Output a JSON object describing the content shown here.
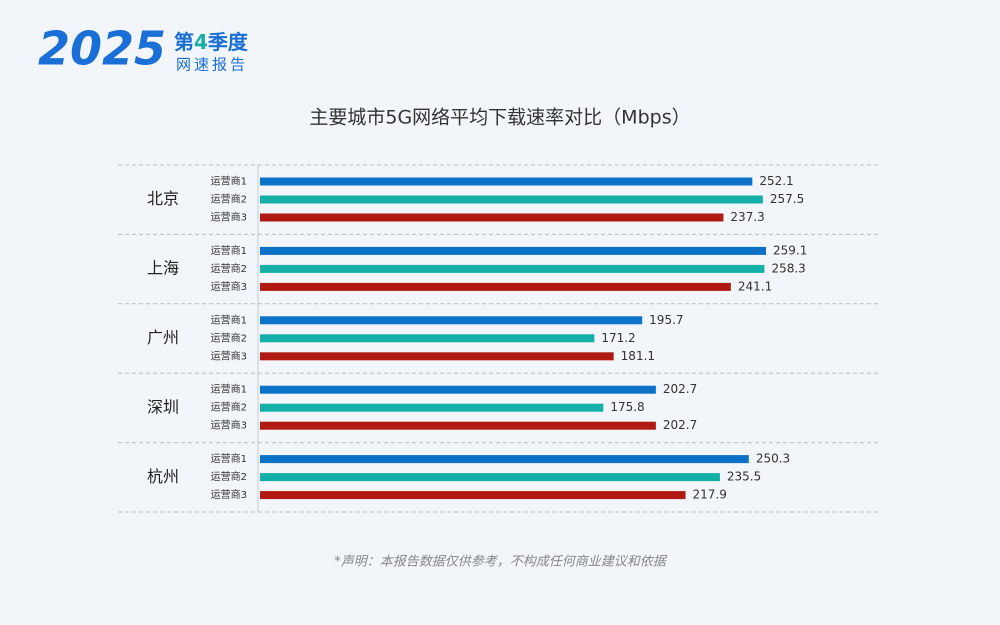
{
  "header": {
    "logo": "2025",
    "quarter": [
      "第",
      "4",
      "季度"
    ],
    "subtitle": "网速报告"
  },
  "chart_data": {
    "type": "grouped-hbar",
    "title": "主要城市5G网络平均下载速率对比（Mbps）",
    "categories": [
      "北京",
      "上海",
      "广州",
      "深圳",
      "杭州"
    ],
    "series": [
      {
        "name": "运营商1",
        "color": "#0b72c7",
        "values": [
          252.1,
          259.1,
          195.7,
          202.7,
          250.3
        ]
      },
      {
        "name": "运营商2",
        "color": "#14b0a8",
        "values": [
          257.5,
          258.3,
          171.2,
          175.8,
          235.5
        ]
      },
      {
        "name": "运营商3",
        "color": "#b01a12",
        "values": [
          237.3,
          241.1,
          181.1,
          202.7,
          217.9
        ]
      }
    ]
  },
  "footer": "*声明：本报告数据仅供参考，不构成任何商业建议和依据"
}
